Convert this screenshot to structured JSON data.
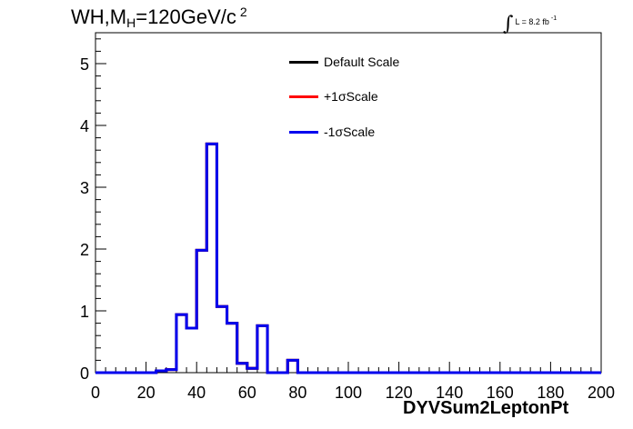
{
  "chart_data": {
    "type": "line",
    "title": "WH,M",
    "title_subscript": "H",
    "title_rest": "=120GeV/c",
    "title_superscript": "2",
    "luminosity_label": "L = 8.2 fb",
    "luminosity_superscript": "-1",
    "xlabel": "DYVSum2LeptonPt",
    "ylabel": "",
    "xlim": [
      0,
      200
    ],
    "ylim": [
      0,
      5.5
    ],
    "x_ticks": [
      "0",
      "20",
      "40",
      "60",
      "80",
      "100",
      "120",
      "140",
      "160",
      "180",
      "200"
    ],
    "y_ticks": [
      "0",
      "1",
      "2",
      "3",
      "4",
      "5"
    ],
    "bin_width": 4,
    "bin_edges_start": 0,
    "legend_position": "top-center",
    "series": [
      {
        "name": "Default Scale",
        "color": "#000000",
        "values": [
          0,
          0,
          0,
          0,
          0,
          0,
          0.03,
          0.05,
          0.94,
          0.72,
          1.98,
          3.7,
          1.07,
          0.8,
          0.15,
          0.07,
          0.76,
          0,
          0,
          0.2,
          0,
          0,
          0,
          0,
          0,
          0,
          0,
          0,
          0,
          0,
          0,
          0,
          0,
          0,
          0,
          0,
          0,
          0,
          0,
          0,
          0,
          0,
          0,
          0,
          0,
          0,
          0,
          0,
          0,
          0
        ]
      },
      {
        "name": "+1σScale",
        "color": "#ff0000",
        "values": [
          0,
          0,
          0,
          0,
          0,
          0,
          0.03,
          0.05,
          0.94,
          0.72,
          1.98,
          3.7,
          1.07,
          0.8,
          0.15,
          0.07,
          0.76,
          0,
          0,
          0.2,
          0,
          0,
          0,
          0,
          0,
          0,
          0,
          0,
          0,
          0,
          0,
          0,
          0,
          0,
          0,
          0,
          0,
          0,
          0,
          0,
          0,
          0,
          0,
          0,
          0,
          0,
          0,
          0,
          0,
          0
        ]
      },
      {
        "name": "-1σScale",
        "color": "#0000ee",
        "values": [
          0,
          0,
          0,
          0,
          0,
          0,
          0.03,
          0.05,
          0.94,
          0.72,
          1.98,
          3.7,
          1.07,
          0.8,
          0.15,
          0.07,
          0.76,
          0,
          0,
          0.2,
          0,
          0,
          0,
          0,
          0,
          0,
          0,
          0,
          0,
          0,
          0,
          0,
          0,
          0,
          0,
          0,
          0,
          0,
          0,
          0,
          0,
          0,
          0,
          0,
          0,
          0,
          0,
          0,
          0,
          0
        ]
      }
    ]
  }
}
